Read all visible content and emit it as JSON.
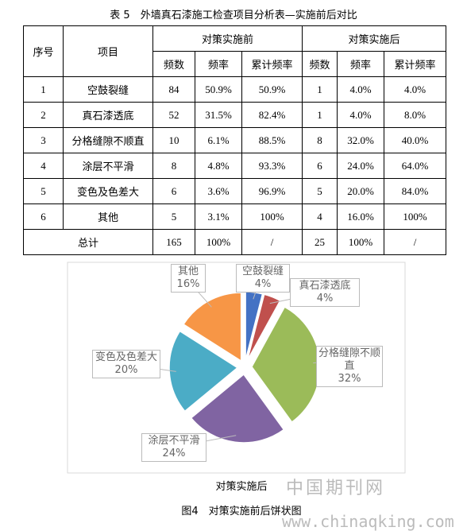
{
  "caption": "表 5　外墙真石漆施工检查项目分析表—实施前后对比",
  "table": {
    "headers": [
      "序号",
      "项目"
    ],
    "groups": [
      "对策实施前",
      "对策实施后"
    ],
    "subheaders": [
      "频数",
      "频率",
      "累计频率",
      "频数",
      "频率",
      "累计频率"
    ],
    "rows": [
      [
        "1",
        "空鼓裂缝",
        "84",
        "50.9%",
        "50.9%",
        "1",
        "4.0%",
        "4.0%"
      ],
      [
        "2",
        "真石漆透底",
        "52",
        "31.5%",
        "82.4%",
        "1",
        "4.0%",
        "8.0%"
      ],
      [
        "3",
        "分格缝隙不顺直",
        "10",
        "6.1%",
        "88.5%",
        "8",
        "32.0%",
        "40.0%"
      ],
      [
        "4",
        "涂层不平滑",
        "8",
        "4.8%",
        "93.3%",
        "6",
        "24.0%",
        "64.0%"
      ],
      [
        "5",
        "变色及色差大",
        "6",
        "3.6%",
        "96.9%",
        "5",
        "20.0%",
        "84.0%"
      ],
      [
        "6",
        "其他",
        "5",
        "3.1%",
        "100%",
        "4",
        "16.0%",
        "100%"
      ]
    ],
    "total": {
      "label": "总计",
      "cells": [
        "165",
        "100%",
        "/",
        "25",
        "100%",
        "/"
      ]
    }
  },
  "chart_data": {
    "type": "pie",
    "title": "对策实施后",
    "categories": [
      "空鼓裂缝",
      "真石漆透底",
      "分格缝隙不顺直",
      "涂层不平滑",
      "变色及色差大",
      "其他"
    ],
    "values": [
      4,
      4,
      32,
      24,
      20,
      16
    ],
    "value_labels": [
      "4%",
      "4%",
      "32%",
      "24%",
      "20%",
      "16%"
    ],
    "colors": [
      "#4472c4",
      "#c0504d",
      "#9bbb59",
      "#8064a2",
      "#4bacc6",
      "#f79646"
    ]
  },
  "figure_caption": "图4　对策实施前后饼状图",
  "watermark": {
    "site": "中国期刊网",
    "url": "www.chinaqking.com"
  }
}
